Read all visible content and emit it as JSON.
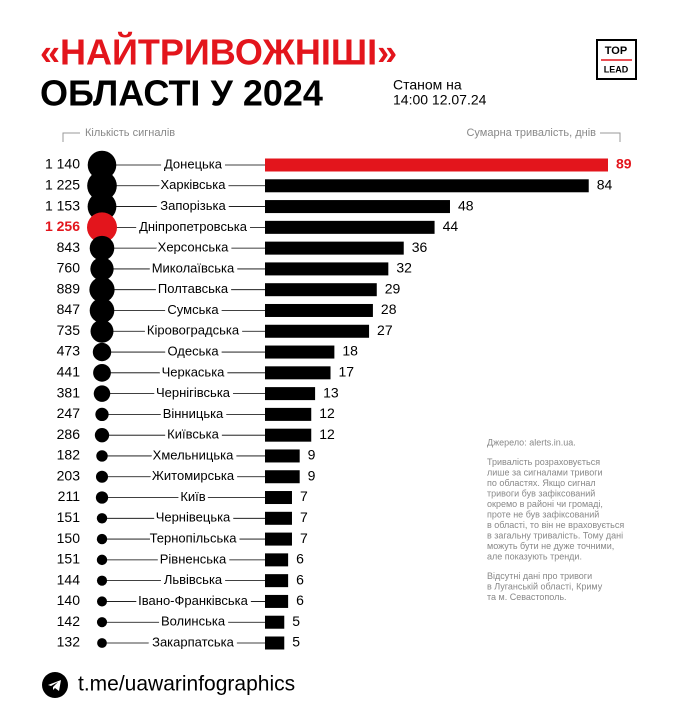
{
  "chart_data": {
    "type": "bar",
    "title": [
      "«НАЙТРИВОЖНІШІ»",
      "ОБЛАСТІ У 2024"
    ],
    "subtitle": [
      "Станом на",
      "14:00 12.07.24"
    ],
    "logo": [
      "TOP",
      "LEAD"
    ],
    "categories": [
      "Донецька",
      "Харківська",
      "Запорізька",
      "Дніпропетровська",
      "Херсонська",
      "Миколаївська",
      "Полтавська",
      "Сумська",
      "Кіровоградська",
      "Одеська",
      "Черкаська",
      "Чернігівська",
      "Вінницька",
      "Київська",
      "Хмельницька",
      "Житомирська",
      "Київ",
      "Чернівецька",
      "Тернопільська",
      "Рівненська",
      "Львівська",
      "Івано-Франківська",
      "Волинська",
      "Закарпатська"
    ],
    "series": [
      {
        "name": "Кількість сигналів",
        "mark": "circle",
        "values": [
          1140,
          1225,
          1153,
          1256,
          843,
          760,
          889,
          847,
          735,
          473,
          441,
          381,
          247,
          286,
          182,
          203,
          211,
          151,
          150,
          151,
          144,
          140,
          142,
          132
        ],
        "value_labels": [
          "1 140",
          "1 225",
          "1 153",
          "1 256",
          "843",
          "760",
          "889",
          "847",
          "735",
          "473",
          "441",
          "381",
          "247",
          "286",
          "182",
          "203",
          "211",
          "151",
          "150",
          "151",
          "144",
          "140",
          "142",
          "132"
        ],
        "colors": [
          "#000000",
          "#000000",
          "#000000",
          "#e3151c",
          "#000000",
          "#000000",
          "#000000",
          "#000000",
          "#000000",
          "#000000",
          "#000000",
          "#000000",
          "#000000",
          "#000000",
          "#000000",
          "#000000",
          "#000000",
          "#000000",
          "#000000",
          "#000000",
          "#000000",
          "#000000",
          "#000000",
          "#000000"
        ]
      },
      {
        "name": "Сумарна тривалість, днів",
        "mark": "bar",
        "values": [
          89,
          84,
          48,
          44,
          36,
          32,
          29,
          28,
          27,
          18,
          17,
          13,
          12,
          12,
          9,
          9,
          7,
          7,
          7,
          6,
          6,
          6,
          5,
          5
        ],
        "colors": [
          "#e3151c",
          "#000000",
          "#000000",
          "#000000",
          "#000000",
          "#000000",
          "#000000",
          "#000000",
          "#000000",
          "#000000",
          "#000000",
          "#000000",
          "#000000",
          "#000000",
          "#000000",
          "#000000",
          "#000000",
          "#000000",
          "#000000",
          "#000000",
          "#000000",
          "#000000",
          "#000000",
          "#000000"
        ]
      }
    ],
    "annotations": [
      [
        "Джерело: alerts.in.ua."
      ],
      [
        "Тривалість розраховується",
        "лише за сигналами тривоги",
        "по областях. Якщо сигнал",
        "тривоги був зафіксований",
        "окремо в районі чи громаді,",
        "проте не був зафіксований",
        "в області, то він не враховується",
        "в загальну тривалість. Тому дані",
        "можуть бути не дуже точними,",
        "але показують тренди."
      ],
      [
        "Відсутні дані про тривоги",
        "в Луганській області, Криму",
        "та м. Севастополь."
      ]
    ],
    "footer": "t.me/uawarinfographics"
  }
}
